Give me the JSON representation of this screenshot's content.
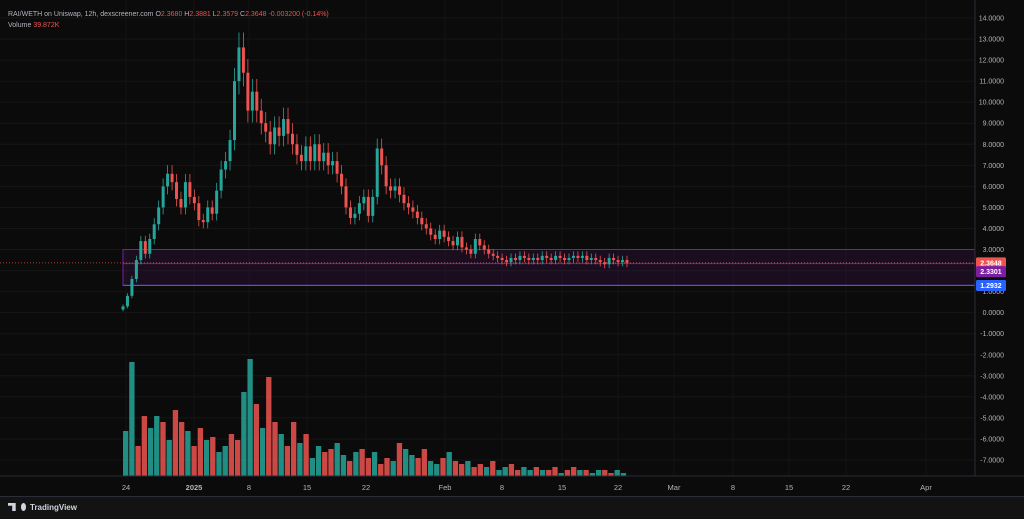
{
  "legend": {
    "pair": "RAI/WETH on Uniswap, 12h, dexscreener.com",
    "o_label": "O",
    "o": "2.3680",
    "h_label": "H",
    "h": "2.3881",
    "l_label": "L",
    "l": "2.3579",
    "c_label": "C",
    "c": "2.3648",
    "change": "-0.003200 (-0.14%)",
    "volume_label": "Volume",
    "volume": "39.872K"
  },
  "brand": {
    "name": "TradingView",
    "logo_icon": "tradingview-logo-icon"
  },
  "colors": {
    "up": "#26a69a",
    "down": "#ef5350",
    "box": "#7b1fa2",
    "line": "#2962ff",
    "bg": "#0b0b0b"
  },
  "chart_data": {
    "type": "candlestick",
    "interval": "12h",
    "x_labels": [
      "24",
      "2025",
      "8",
      "15",
      "22",
      "Feb",
      "8",
      "15",
      "22",
      "Mar",
      "8",
      "15",
      "22",
      "Apr"
    ],
    "y_ticks": [
      "14.0000",
      "13.0000",
      "12.0000",
      "11.0000",
      "10.0000",
      "9.0000",
      "8.0000",
      "7.0000",
      "6.0000",
      "5.0000",
      "4.0000",
      "3.0000",
      "2.0000",
      "1.0000",
      "0.0000",
      "-1.0000",
      "-2.0000",
      "-3.0000",
      "-4.0000",
      "-5.0000",
      "-6.0000",
      "-7.0000"
    ],
    "ylim": [
      -7.5,
      14.5
    ],
    "price_labels": [
      {
        "value": 2.3648,
        "text": "2.3648",
        "color": "#ef5350"
      },
      {
        "value": 2.3301,
        "text": "2.3301",
        "color": "#7b1fa2"
      },
      {
        "value": 1.2932,
        "text": "1.2932",
        "color": "#2962ff"
      }
    ],
    "zone_box": {
      "top": 3.0,
      "bottom": 1.3,
      "mid": 2.33
    },
    "close_series": [
      0.3,
      0.8,
      1.6,
      2.5,
      3.4,
      2.8,
      3.5,
      4.2,
      5.0,
      6.0,
      6.6,
      6.2,
      5.4,
      5.0,
      6.2,
      5.5,
      5.2,
      4.4,
      4.3,
      5.0,
      4.7,
      5.8,
      6.8,
      7.2,
      8.2,
      11.0,
      12.6,
      11.4,
      9.6,
      10.5,
      9.6,
      9.0,
      8.6,
      8.0,
      8.8,
      8.4,
      9.2,
      8.5,
      8.0,
      7.5,
      7.2,
      7.9,
      7.2,
      8.0,
      7.2,
      7.6,
      7.0,
      7.2,
      6.6,
      6.0,
      5.0,
      4.5,
      4.7,
      5.2,
      5.5,
      4.6,
      5.5,
      7.8,
      7.0,
      6.0,
      5.8,
      6.0,
      5.6,
      5.2,
      5.0,
      4.8,
      4.5,
      4.2,
      4.0,
      3.7,
      3.5,
      3.9,
      3.6,
      3.4,
      3.2,
      3.6,
      3.1,
      3.0,
      2.8,
      3.5,
      3.2,
      3.0,
      2.8,
      2.7,
      2.6,
      2.5,
      2.4,
      2.6,
      2.5,
      2.7,
      2.6,
      2.5,
      2.6,
      2.5,
      2.7,
      2.6,
      2.5,
      2.7,
      2.6,
      2.5,
      2.6,
      2.7,
      2.6,
      2.7,
      2.5,
      2.6,
      2.5,
      2.4,
      2.3,
      2.6,
      2.5,
      2.4,
      2.5,
      2.3648
    ],
    "volume_series": [
      1.5,
      3.8,
      1.0,
      2.0,
      1.6,
      2.0,
      1.8,
      1.2,
      2.2,
      1.8,
      1.5,
      1.0,
      1.6,
      1.2,
      1.3,
      0.8,
      1.0,
      1.4,
      1.2,
      2.8,
      3.9,
      2.4,
      1.6,
      3.3,
      1.8,
      1.4,
      1.0,
      1.8,
      1.1,
      1.4,
      0.6,
      1.0,
      0.8,
      0.9,
      1.1,
      0.7,
      0.5,
      0.8,
      0.9,
      0.6,
      0.8,
      0.4,
      0.6,
      0.5,
      1.1,
      0.9,
      0.7,
      0.6,
      0.9,
      0.5,
      0.4,
      0.6,
      0.8,
      0.5,
      0.4,
      0.5,
      0.3,
      0.4,
      0.3,
      0.5,
      0.2,
      0.3,
      0.4,
      0.2,
      0.3,
      0.2,
      0.3,
      0.2,
      0.2,
      0.3,
      0.1,
      0.2,
      0.3,
      0.2,
      0.2,
      0.1,
      0.2,
      0.2,
      0.1,
      0.2,
      0.1
    ]
  }
}
